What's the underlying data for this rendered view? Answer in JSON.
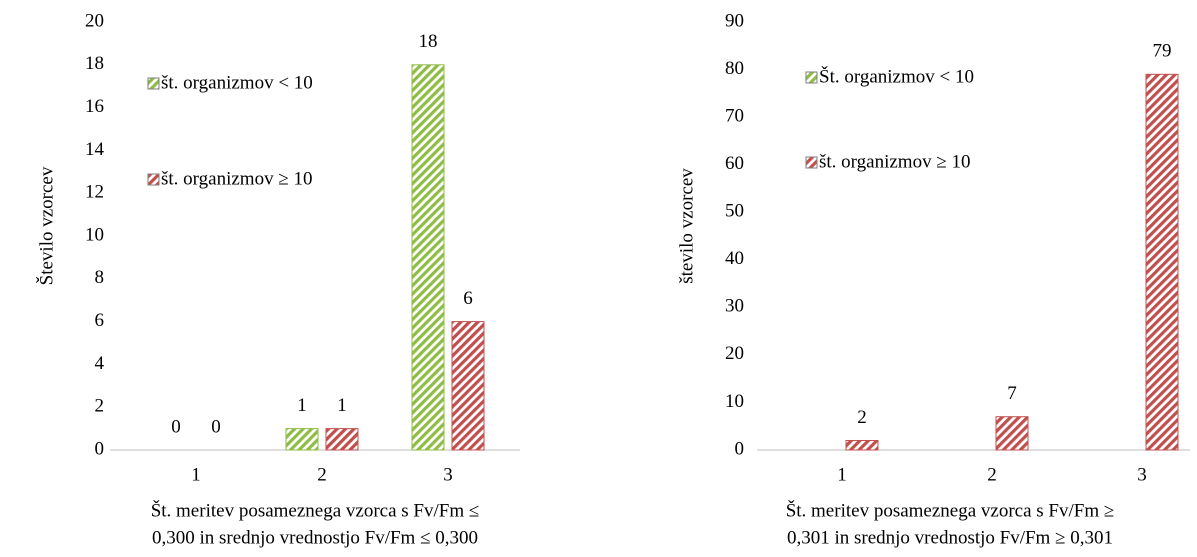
{
  "chart_data": [
    {
      "type": "bar",
      "ylabel": "Število vzorcev",
      "xlabel": [
        "Št. meritev posameznega vzorca s Fv/Fm ≤",
        "0,300 in srednjo vrednostjo Fv/Fm ≤ 0,300"
      ],
      "categories": [
        "1",
        "2",
        "3"
      ],
      "series": [
        {
          "name": "št. organizmov < 10",
          "color": "#8fbc45",
          "values": [
            0,
            1,
            18
          ]
        },
        {
          "name": "št. organizmov ≥ 10",
          "color": "#c0504d",
          "values": [
            0,
            1,
            6
          ]
        }
      ],
      "ylim": [
        0,
        20
      ],
      "yticks": [
        0,
        2,
        4,
        6,
        8,
        10,
        12,
        14,
        16,
        18,
        20
      ]
    },
    {
      "type": "bar",
      "ylabel": "število vzorcev",
      "xlabel": [
        "Št. meritev posameznega vzorca s Fv/Fm ≥",
        "0,301 in srednjo vrednostjo Fv/Fm ≥ 0,301"
      ],
      "categories": [
        "1",
        "2",
        "3"
      ],
      "series": [
        {
          "name": "Št. organizmov < 10",
          "color": "#8fbc45",
          "values": [
            null,
            null,
            null
          ]
        },
        {
          "name": "št. organizmov ≥ 10",
          "color": "#c0504d",
          "values": [
            2,
            7,
            79
          ]
        }
      ],
      "ylim": [
        0,
        90
      ],
      "yticks": [
        0,
        10,
        20,
        30,
        40,
        50,
        60,
        70,
        80,
        90
      ]
    }
  ]
}
